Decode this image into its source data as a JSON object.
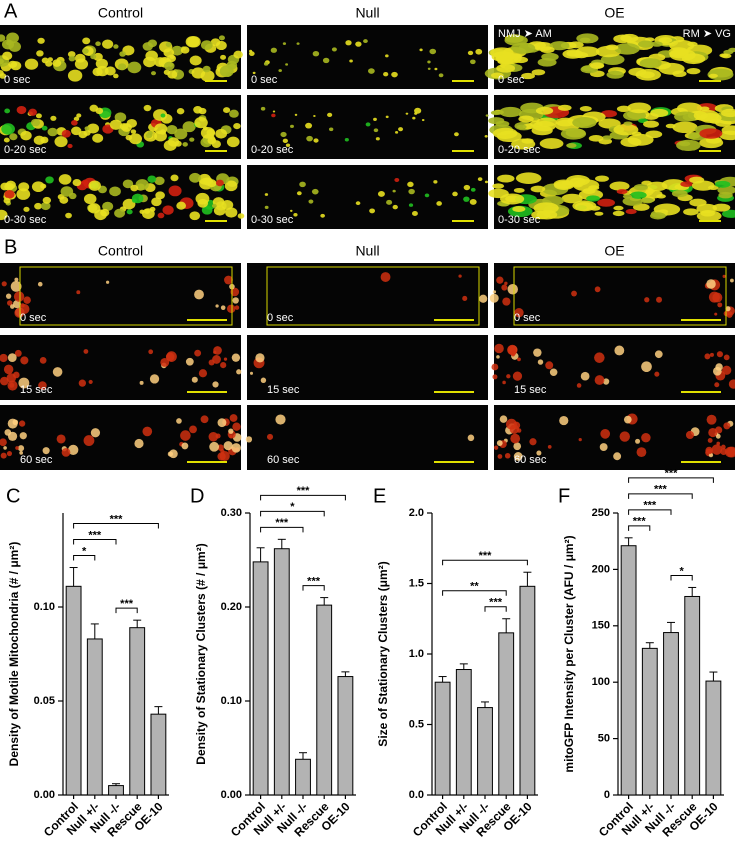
{
  "figure": {
    "panel_labels": [
      "A",
      "B",
      "C",
      "D",
      "E",
      "F"
    ],
    "A": {
      "columns": [
        "Control",
        "Null",
        "OE"
      ],
      "times": [
        "0 sec",
        "0-20 sec",
        "0-30 sec"
      ],
      "annotations": [
        "NMJ ➤ AM",
        "RM ➤ VG"
      ]
    },
    "B": {
      "columns": [
        "Control",
        "Null",
        "OE"
      ],
      "times": [
        "0 sec",
        "15 sec",
        "60 sec"
      ]
    }
  },
  "chart_data": [
    {
      "type": "bar",
      "ylabel": "Density of Motile Mitochondria (# / μm²)",
      "color": "#b3b3b3",
      "categories": [
        "Control",
        "Null +/-",
        "Null -/-",
        "Rescue",
        "OE-10"
      ],
      "values": [
        0.111,
        0.083,
        0.005,
        0.089,
        0.043
      ],
      "errors": [
        0.01,
        0.008,
        0.001,
        0.004,
        0.004
      ],
      "ylim": [
        0,
        0.15
      ],
      "yticks": [
        {
          "value": 0,
          "label": "0.00"
        },
        {
          "value": 0.05,
          "label": "0.05"
        },
        {
          "value": 0.1,
          "label": "0.10"
        }
      ],
      "significance": [
        {
          "between": [
            "Control",
            "Null +/-"
          ],
          "label": "*"
        },
        {
          "between": [
            "Control",
            "Null -/-"
          ],
          "label": "***"
        },
        {
          "between": [
            "Control",
            "OE-10"
          ],
          "label": "***"
        },
        {
          "between": [
            "Null -/-",
            "Rescue"
          ],
          "label": "***"
        }
      ]
    },
    {
      "type": "bar",
      "ylabel": "Density of Stationary Clusters (# / μm²)",
      "color": "#b3b3b3",
      "categories": [
        "Control",
        "Null +/-",
        "Null -/-",
        "Rescue",
        "OE-10"
      ],
      "values": [
        0.248,
        0.262,
        0.038,
        0.202,
        0.126
      ],
      "errors": [
        0.015,
        0.01,
        0.007,
        0.008,
        0.005
      ],
      "ylim": [
        0,
        0.3
      ],
      "yticks": [
        {
          "value": 0,
          "label": "0.00"
        },
        {
          "value": 0.1,
          "label": "0.10"
        },
        {
          "value": 0.2,
          "label": "0.20"
        },
        {
          "value": 0.3,
          "label": "0.30"
        }
      ],
      "significance": [
        {
          "between": [
            "Control",
            "Null -/-"
          ],
          "label": "***"
        },
        {
          "between": [
            "Control",
            "Rescue"
          ],
          "label": "*"
        },
        {
          "between": [
            "Control",
            "OE-10"
          ],
          "label": "***"
        },
        {
          "between": [
            "Null -/-",
            "Rescue"
          ],
          "label": "***"
        }
      ]
    },
    {
      "type": "bar",
      "ylabel": "Size of Stationary Clusters (μm²)",
      "color": "#b3b3b3",
      "categories": [
        "Control",
        "Null +/-",
        "Null -/-",
        "Rescue",
        "OE-10"
      ],
      "values": [
        0.8,
        0.89,
        0.62,
        1.15,
        1.48
      ],
      "errors": [
        0.04,
        0.04,
        0.04,
        0.1,
        0.1
      ],
      "ylim": [
        0,
        2
      ],
      "yticks": [
        {
          "value": 0,
          "label": "0.0"
        },
        {
          "value": 0.5,
          "label": "0.5"
        },
        {
          "value": 1,
          "label": "1.0"
        },
        {
          "value": 1.5,
          "label": "1.5"
        },
        {
          "value": 2,
          "label": "2.0"
        }
      ],
      "significance": [
        {
          "between": [
            "Null -/-",
            "Rescue"
          ],
          "label": "***"
        },
        {
          "between": [
            "Control",
            "Rescue"
          ],
          "label": "**"
        },
        {
          "between": [
            "Control",
            "OE-10"
          ],
          "label": "***"
        }
      ]
    },
    {
      "type": "bar",
      "ylabel": "mitoGFP Intensity per Cluster (AFU / μm²)",
      "color": "#b3b3b3",
      "categories": [
        "Control",
        "Null +/-",
        "Null -/-",
        "Rescue",
        "OE-10"
      ],
      "values": [
        221,
        130,
        144,
        176,
        101
      ],
      "errors": [
        7,
        5,
        9,
        8,
        8
      ],
      "ylim": [
        0,
        250
      ],
      "yticks": [
        0,
        50,
        100,
        150,
        200,
        250
      ],
      "significance": [
        {
          "between": [
            "Control",
            "Null +/-"
          ],
          "label": "***"
        },
        {
          "between": [
            "Control",
            "Null -/-"
          ],
          "label": "***"
        },
        {
          "between": [
            "Control",
            "Rescue"
          ],
          "label": "***"
        },
        {
          "between": [
            "Control",
            "OE-10"
          ],
          "label": "***"
        },
        {
          "between": [
            "Null -/-",
            "Rescue"
          ],
          "label": "*"
        }
      ]
    }
  ]
}
